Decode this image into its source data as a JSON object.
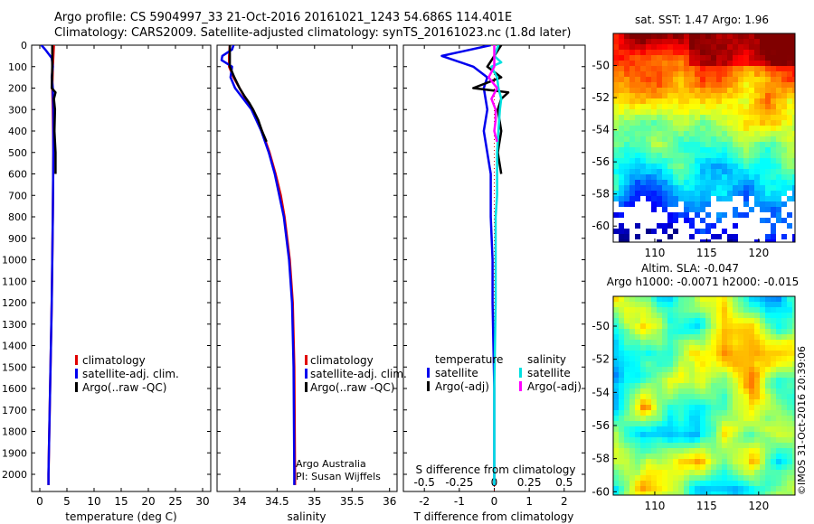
{
  "header": {
    "line1": "Argo profile: CS 5904997_33 21-Oct-2016 20161021_1243 54.686S 114.401E",
    "line2": "Climatology: CARS2009. Satellite-adjusted climatology: synTS_20161023.nc (1.8d later)"
  },
  "credit": "©IMOS 31-Oct-2016 20:39:06",
  "colors": {
    "climatology": "#e00000",
    "satellite": "#0000ee",
    "argo": "#000000",
    "sal_satellite": "#00e0e0",
    "sal_argo": "#ff00ff"
  },
  "chart_data": [
    {
      "type": "line",
      "id": "temperature",
      "xlabel": "temperature (deg C)",
      "ylabel": "",
      "xlim": [
        -1.5,
        31.5
      ],
      "ylim": [
        2080,
        0
      ],
      "xticks": [
        0,
        5,
        10,
        15,
        20,
        25,
        30
      ],
      "yticks": [
        0,
        100,
        200,
        300,
        400,
        500,
        600,
        700,
        800,
        900,
        1000,
        1100,
        1200,
        1300,
        1400,
        1500,
        1600,
        1700,
        1800,
        1900,
        2000
      ],
      "legend": [
        {
          "label": "climatology",
          "color_key": "climatology"
        },
        {
          "label": "satellite-adj. clim.",
          "color_key": "satellite"
        },
        {
          "label": "Argo(..raw -QC)",
          "color_key": "argo"
        }
      ],
      "series": [
        {
          "name": "climatology",
          "color_key": "climatology",
          "depth": [
            0,
            50,
            100,
            200,
            300,
            500,
            800,
            1200,
            1600,
            2000,
            2050
          ],
          "values": [
            2.6,
            2.5,
            2.4,
            2.3,
            2.4,
            2.5,
            2.4,
            2.2,
            1.9,
            1.6,
            1.6
          ]
        },
        {
          "name": "satellite-adj. clim.",
          "color_key": "satellite",
          "depth": [
            0,
            20,
            60,
            100,
            150,
            200,
            300,
            500,
            800,
            1200,
            1600,
            2000,
            2050
          ],
          "values": [
            0.3,
            1.0,
            2.2,
            2.4,
            2.2,
            2.4,
            2.5,
            2.5,
            2.4,
            2.2,
            1.9,
            1.6,
            1.6
          ]
        },
        {
          "name": "Argo(..raw -QC)",
          "color_key": "argo",
          "depth": [
            0,
            100,
            200,
            220,
            250,
            300,
            400,
            500,
            600
          ],
          "values": [
            2.3,
            2.3,
            2.2,
            2.9,
            2.6,
            2.8,
            2.7,
            2.9,
            2.9
          ]
        }
      ]
    },
    {
      "type": "line",
      "id": "salinity",
      "xlabel": "salinity",
      "ylabel": "",
      "xlim": [
        33.7,
        36.1
      ],
      "ylim": [
        2080,
        0
      ],
      "xticks": [
        34,
        34.5,
        35,
        35.5,
        36
      ],
      "xtick_labels": [
        "34",
        "34.5",
        "35",
        "35.5",
        "36"
      ],
      "legend": [
        {
          "label": "climatology",
          "color_key": "climatology"
        },
        {
          "label": "satellite-adj. clim.",
          "color_key": "satellite"
        },
        {
          "label": "Argo(..raw -QC)",
          "color_key": "argo"
        }
      ],
      "annotation": [
        "Argo Australia",
        "PI: Susan Wijffels"
      ],
      "series": [
        {
          "name": "climatology",
          "color_key": "climatology",
          "depth": [
            0,
            50,
            100,
            150,
            200,
            250,
            300,
            400,
            500,
            600,
            700,
            800,
            1000,
            1200,
            1500,
            2000,
            2050
          ],
          "values": [
            33.87,
            33.86,
            33.86,
            33.92,
            34.0,
            34.08,
            34.18,
            34.3,
            34.4,
            34.48,
            34.55,
            34.6,
            34.67,
            34.71,
            34.73,
            34.74,
            34.74
          ]
        },
        {
          "name": "satellite-adj. clim.",
          "color_key": "satellite",
          "depth": [
            0,
            20,
            50,
            70,
            100,
            150,
            200,
            250,
            300,
            400,
            500,
            600,
            700,
            800,
            1000,
            1200,
            1500,
            2000,
            2050
          ],
          "values": [
            33.92,
            33.9,
            33.77,
            33.76,
            33.9,
            33.88,
            33.94,
            34.05,
            34.16,
            34.29,
            34.39,
            34.47,
            34.53,
            34.59,
            34.66,
            34.7,
            34.72,
            34.73,
            34.73
          ]
        },
        {
          "name": "Argo(..raw -QC)",
          "color_key": "argo",
          "depth": [
            0,
            100,
            150,
            200,
            240,
            270,
            300,
            350,
            400,
            450
          ],
          "values": [
            33.87,
            33.87,
            33.93,
            34.0,
            34.07,
            34.13,
            34.18,
            34.25,
            34.3,
            34.36
          ]
        }
      ]
    },
    {
      "type": "line",
      "id": "difference",
      "xlabel": "T difference from climatology",
      "xlabel_top": "S difference from climatology",
      "xlim": [
        -2.6,
        2.6
      ],
      "ylim": [
        2080,
        0
      ],
      "xticks": [
        -2,
        -1,
        0,
        1,
        2
      ],
      "xticks_s": [
        -0.5,
        -0.25,
        0,
        0.25,
        0.5
      ],
      "xtick_labels_s": [
        "-0.5",
        "-0.25",
        "0",
        "0.25",
        "0.5"
      ],
      "legend": {
        "temperature_header": "temperature",
        "salinity_header": "salinity",
        "temperature": [
          {
            "label": "satellite",
            "color_key": "satellite"
          },
          {
            "label": "Argo(-adj)",
            "color_key": "argo"
          }
        ],
        "salinity": [
          {
            "label": "satellite",
            "color_key": "sal_satellite"
          },
          {
            "label": "Argo(-adj)",
            "color_key": "sal_argo"
          }
        ]
      },
      "series": [
        {
          "name": "T satellite",
          "color_key": "satellite",
          "depth": [
            0,
            50,
            100,
            150,
            200,
            300,
            400,
            600,
            800,
            1000,
            1200,
            1600,
            2000,
            2050
          ],
          "values": [
            -0.1,
            -1.5,
            -0.6,
            -0.2,
            -0.3,
            -0.2,
            -0.3,
            -0.1,
            -0.1,
            -0.05,
            -0.05,
            0,
            0,
            0
          ]
        },
        {
          "name": "T Argo(-adj)",
          "color_key": "argo",
          "depth": [
            0,
            50,
            100,
            150,
            200,
            220,
            250,
            300,
            400,
            500,
            600
          ],
          "values": [
            0.2,
            0.0,
            -0.2,
            0.2,
            -0.6,
            0.4,
            0.2,
            0.1,
            0.2,
            0.1,
            0.2
          ]
        },
        {
          "name": "S satellite",
          "color_key": "sal_satellite",
          "depth": [
            0,
            50,
            80,
            100,
            150,
            200,
            250,
            300,
            400,
            500,
            600,
            700,
            800,
            1000,
            1200,
            1600,
            2000,
            2050
          ],
          "values": [
            0.03,
            0.0,
            0.05,
            -0.02,
            0.02,
            0.03,
            0.05,
            0.04,
            0.03,
            0.02,
            0.02,
            0.02,
            0.01,
            0.01,
            0.01,
            0.0,
            0.0,
            0.0
          ]
        },
        {
          "name": "S Argo(-adj)",
          "color_key": "sal_argo",
          "depth": [
            0,
            100,
            150,
            200,
            250,
            300,
            350,
            400,
            450
          ],
          "values": [
            0.0,
            0.0,
            -0.04,
            0.02,
            -0.02,
            0.01,
            0.01,
            0.0,
            0.02
          ]
        }
      ]
    },
    {
      "type": "heatmap",
      "id": "sst_map",
      "title": "sat. SST: 1.47 Argo: 1.96",
      "xlim": [
        106,
        123.5
      ],
      "ylim": [
        -61,
        -48
      ],
      "xticks": [
        110,
        115,
        120
      ],
      "yticks": [
        -50,
        -52,
        -54,
        -56,
        -58,
        -60
      ]
    },
    {
      "type": "heatmap",
      "id": "sla_map",
      "title_line1": "Altim. SLA: -0.047",
      "title_line2": "Argo h1000: -0.0071 h2000: -0.015",
      "xlim": [
        106,
        123.5
      ],
      "ylim": [
        -60.2,
        -48.2
      ],
      "xticks": [
        110,
        115,
        120
      ],
      "yticks": [
        -50,
        -52,
        -54,
        -56,
        -58,
        -60
      ]
    }
  ]
}
